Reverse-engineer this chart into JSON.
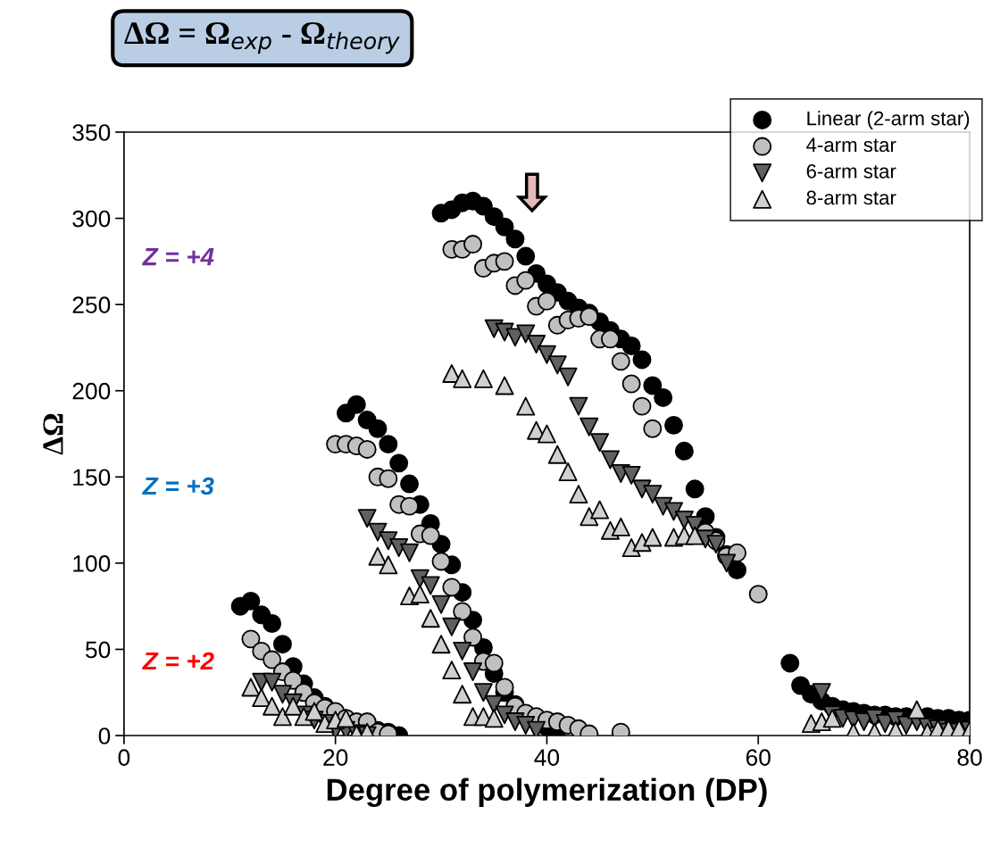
{
  "chart_data": {
    "type": "scatter",
    "title": "ΔΩ = Ω$_{exp}$ - Ω$_{theory}$",
    "xlabel": "Degree of polymerization (DP)",
    "ylabel": "ΔΩ",
    "xlim": [
      0,
      80
    ],
    "xticks": [
      0,
      20,
      40,
      60,
      80
    ],
    "ylim": [
      0,
      350
    ],
    "yticks": [
      0,
      50,
      100,
      150,
      200,
      250,
      300,
      350
    ],
    "grid": false,
    "legend": "top right",
    "annotations": [
      "Z = +4",
      "Z = +3",
      "Z = +2"
    ],
    "series": [
      {
        "name": "Linear (2-arm star)",
        "color": "#000000",
        "marker": "circle",
        "x": [
          11,
          12,
          13,
          14,
          15,
          16,
          17,
          18,
          19,
          24,
          25,
          26,
          21,
          22,
          23,
          24,
          25,
          26,
          27,
          28,
          29,
          30,
          31,
          32,
          33,
          34,
          35,
          36,
          37,
          40,
          41,
          30,
          31,
          32,
          33,
          34,
          35,
          36,
          37,
          38,
          39,
          40,
          41,
          42,
          43,
          44,
          45,
          46,
          47,
          48,
          49,
          50,
          51,
          52,
          53,
          54,
          55,
          56,
          57,
          58,
          63,
          64,
          65,
          66,
          67,
          68,
          69,
          70,
          71,
          72,
          73,
          74,
          76,
          77,
          78,
          79,
          80
        ],
        "values": [
          75,
          78,
          70,
          65,
          53,
          40,
          30,
          22,
          17,
          3,
          2,
          0,
          187,
          192,
          183,
          178,
          169,
          158,
          146,
          134,
          123,
          111,
          99,
          83,
          67,
          51,
          36,
          25,
          18,
          5,
          3,
          303,
          305,
          309,
          310,
          307,
          301,
          295,
          288,
          278,
          268,
          262,
          257,
          252,
          248,
          245,
          240,
          235,
          230,
          226,
          218,
          203,
          196,
          180,
          165,
          143,
          127,
          115,
          105,
          96,
          42,
          29,
          24,
          20,
          17,
          15,
          14,
          13,
          12,
          12,
          11,
          11,
          11,
          10,
          10,
          9,
          9
        ]
      },
      {
        "name": "4-arm star",
        "color": "#c0c0c0",
        "marker": "circle",
        "x": [
          12,
          13,
          14,
          15,
          16,
          17,
          18,
          19,
          20,
          21,
          22,
          23,
          24,
          25,
          20,
          21,
          22,
          23,
          24,
          25,
          26,
          27,
          28,
          29,
          30,
          31,
          32,
          33,
          34,
          35,
          36,
          37,
          38,
          39,
          40,
          41,
          42,
          43,
          44,
          47,
          31,
          32,
          33,
          34,
          35,
          36,
          37,
          38,
          39,
          40,
          41,
          42,
          43,
          44,
          45,
          46,
          47,
          48,
          49,
          50,
          55,
          56,
          57,
          58,
          60
        ],
        "values": [
          56,
          49,
          44,
          37,
          32,
          25,
          19,
          16,
          14,
          10,
          8,
          8,
          2,
          1,
          169,
          169,
          168,
          166,
          150,
          149,
          134,
          133,
          117,
          116,
          101,
          86,
          72,
          57,
          43,
          42,
          28,
          17,
          13,
          11,
          9,
          8,
          6,
          4,
          1,
          2,
          282,
          282,
          285,
          271,
          274,
          275,
          261,
          264,
          249,
          252,
          238,
          241,
          242,
          243,
          230,
          230,
          217,
          204,
          191,
          178,
          118,
          113,
          104,
          106,
          82
        ]
      },
      {
        "name": "6-arm star",
        "color": "#606060",
        "marker": "triangle_down",
        "x": [
          13,
          14,
          15,
          16,
          17,
          18,
          19,
          20,
          21,
          22,
          23,
          23,
          24,
          25,
          26,
          27,
          28,
          29,
          30,
          31,
          32,
          33,
          34,
          35,
          36,
          37,
          38,
          39,
          35,
          36,
          37,
          38,
          39,
          40,
          41,
          42,
          43,
          44,
          45,
          46,
          47,
          48,
          49,
          50,
          51,
          52,
          53,
          54,
          55,
          56,
          57,
          66,
          67,
          68,
          69,
          70,
          71,
          72,
          73,
          74,
          75,
          76,
          77,
          78,
          79,
          80
        ],
        "values": [
          31,
          31,
          24,
          19,
          12,
          9,
          7,
          3,
          3,
          1,
          0,
          126,
          118,
          113,
          109,
          106,
          91,
          87,
          76,
          63,
          49,
          37,
          25,
          18,
          12,
          8,
          6,
          3,
          236,
          234,
          231,
          233,
          227,
          221,
          215,
          208,
          191,
          179,
          170,
          160,
          152,
          151,
          143,
          140,
          133,
          130,
          125,
          122,
          114,
          111,
          100,
          25,
          12,
          10,
          9,
          8,
          10,
          7,
          9,
          6,
          8,
          5,
          4,
          2,
          2,
          3
        ]
      },
      {
        "name": "8-arm star",
        "color": "#d0d0d0",
        "marker": "triangle",
        "x": [
          12,
          13,
          14,
          15,
          16,
          17,
          18,
          19,
          20,
          21,
          22,
          23,
          24,
          25,
          27,
          28,
          29,
          30,
          31,
          32,
          33,
          34,
          35,
          31,
          32,
          34,
          36,
          38,
          39,
          40,
          41,
          42,
          43,
          44,
          45,
          46,
          47,
          48,
          49,
          50,
          52,
          53,
          54,
          65,
          66,
          67,
          69,
          71,
          73,
          75,
          76,
          77,
          78,
          79,
          80
        ],
        "values": [
          28,
          22,
          17,
          11,
          17,
          11,
          14,
          7,
          9,
          10,
          1,
          2,
          104,
          99,
          81,
          82,
          68,
          53,
          38,
          24,
          11,
          11,
          10,
          210,
          207,
          207,
          203,
          191,
          177,
          175,
          163,
          153,
          140,
          127,
          131,
          119,
          121,
          109,
          112,
          115,
          115,
          116,
          116,
          7,
          8,
          10,
          2,
          2,
          3,
          15,
          2,
          4,
          4,
          4,
          3
        ]
      }
    ]
  }
}
